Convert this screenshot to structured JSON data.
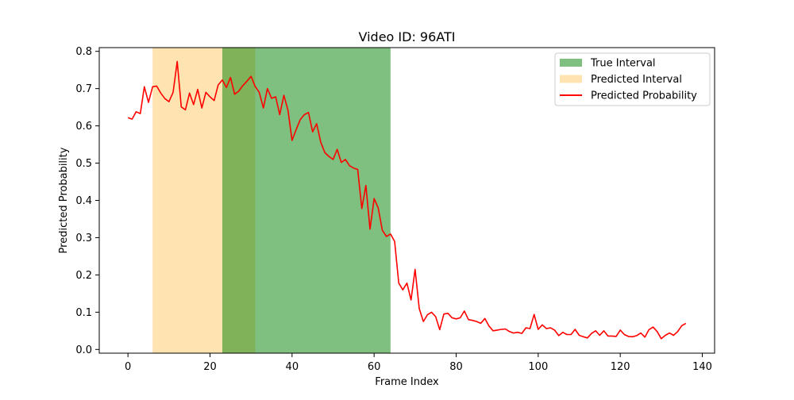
{
  "chart_data": {
    "type": "line",
    "title": "Video ID: 96ATI",
    "xlabel": "Frame Index",
    "ylabel": "Predicted Probability",
    "xlim": [
      -7,
      143
    ],
    "ylim": [
      -0.01,
      0.81
    ],
    "xticks": [
      0,
      20,
      40,
      60,
      80,
      100,
      120,
      140
    ],
    "yticks": [
      0.0,
      0.1,
      0.2,
      0.3,
      0.4,
      0.5,
      0.6,
      0.7,
      0.8
    ],
    "grid": false,
    "legend": {
      "position": "top-right",
      "entries": [
        "True Interval",
        "Predicted Interval",
        "Predicted Probability"
      ]
    },
    "intervals": [
      {
        "name": "Predicted Interval",
        "start": 6,
        "end": 31,
        "color": "#ffa500",
        "opacity": 0.3
      },
      {
        "name": "True Interval",
        "start": 23,
        "end": 64,
        "color": "#008000",
        "opacity": 0.5
      }
    ],
    "series": [
      {
        "name": "Predicted Probability",
        "color": "#ff0000",
        "x": [
          0,
          1,
          2,
          3,
          4,
          5,
          6,
          7,
          8,
          9,
          10,
          11,
          12,
          13,
          14,
          15,
          16,
          17,
          18,
          19,
          20,
          21,
          22,
          23,
          24,
          25,
          26,
          27,
          28,
          29,
          30,
          31,
          32,
          33,
          34,
          35,
          36,
          37,
          38,
          39,
          40,
          41,
          42,
          43,
          44,
          45,
          46,
          47,
          48,
          49,
          50,
          51,
          52,
          53,
          54,
          55,
          56,
          57,
          58,
          59,
          60,
          61,
          62,
          63,
          64,
          65,
          66,
          67,
          68,
          69,
          70,
          71,
          72,
          73,
          74,
          75,
          76,
          77,
          78,
          79,
          80,
          81,
          82,
          83,
          84,
          85,
          86,
          87,
          88,
          89,
          90,
          91,
          92,
          93,
          94,
          95,
          96,
          97,
          98,
          99,
          100,
          101,
          102,
          103,
          104,
          105,
          106,
          107,
          108,
          109,
          110,
          111,
          112,
          113,
          114,
          115,
          116,
          117,
          118,
          119,
          120,
          121,
          122,
          123,
          124,
          125,
          126,
          127,
          128,
          129,
          130,
          131,
          132,
          133,
          134,
          135,
          136
        ],
        "values": [
          0.622,
          0.618,
          0.638,
          0.633,
          0.705,
          0.663,
          0.705,
          0.707,
          0.688,
          0.673,
          0.665,
          0.69,
          0.773,
          0.651,
          0.643,
          0.688,
          0.657,
          0.698,
          0.648,
          0.69,
          0.678,
          0.668,
          0.71,
          0.723,
          0.703,
          0.73,
          0.685,
          0.693,
          0.708,
          0.72,
          0.733,
          0.706,
          0.69,
          0.648,
          0.7,
          0.674,
          0.678,
          0.63,
          0.682,
          0.642,
          0.561,
          0.59,
          0.617,
          0.63,
          0.636,
          0.584,
          0.606,
          0.556,
          0.528,
          0.518,
          0.51,
          0.537,
          0.502,
          0.51,
          0.493,
          0.487,
          0.483,
          0.378,
          0.44,
          0.323,
          0.405,
          0.38,
          0.32,
          0.303,
          0.31,
          0.29,
          0.178,
          0.16,
          0.178,
          0.133,
          0.215,
          0.11,
          0.075,
          0.093,
          0.1,
          0.088,
          0.053,
          0.095,
          0.097,
          0.085,
          0.082,
          0.085,
          0.103,
          0.08,
          0.078,
          0.075,
          0.07,
          0.083,
          0.063,
          0.05,
          0.052,
          0.054,
          0.055,
          0.048,
          0.044,
          0.046,
          0.043,
          0.058,
          0.056,
          0.094,
          0.054,
          0.066,
          0.056,
          0.058,
          0.052,
          0.037,
          0.046,
          0.04,
          0.04,
          0.054,
          0.038,
          0.034,
          0.031,
          0.043,
          0.05,
          0.038,
          0.05,
          0.036,
          0.036,
          0.035,
          0.052,
          0.04,
          0.035,
          0.034,
          0.037,
          0.044,
          0.033,
          0.053,
          0.06,
          0.048,
          0.029,
          0.038,
          0.044,
          0.038,
          0.048,
          0.064,
          0.07
        ]
      }
    ]
  }
}
